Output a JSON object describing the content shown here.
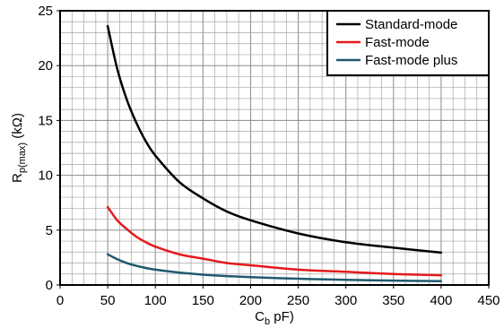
{
  "chart_data": {
    "type": "line",
    "xlabel": "Cb pF)",
    "xlabel_main": "C",
    "xlabel_sub": "b",
    "xlabel_tail": " pF)",
    "ylabel_main": "R",
    "ylabel_sub": "p(max)",
    "ylabel_tail": " (kΩ)",
    "xlim": [
      0,
      450
    ],
    "ylim": [
      0,
      25
    ],
    "x_ticks": [
      0,
      50,
      100,
      150,
      200,
      250,
      300,
      350,
      400,
      450
    ],
    "y_ticks": [
      0,
      5,
      10,
      15,
      20,
      25
    ],
    "x_tick_labels": [
      "0",
      "50",
      "100",
      "150",
      "200",
      "250",
      "300",
      "350",
      "400",
      "450"
    ],
    "y_tick_labels": [
      "0",
      "5",
      "10",
      "15",
      "20",
      "25"
    ],
    "grid": true,
    "legend_position": "top-right",
    "series": [
      {
        "name": "Standard-mode",
        "color": "#000000",
        "x": [
          50,
          60,
          70,
          80,
          90,
          100,
          125,
          150,
          175,
          200,
          250,
          300,
          350,
          400
        ],
        "y": [
          23.6,
          19.7,
          16.9,
          14.8,
          13.1,
          11.8,
          9.4,
          7.9,
          6.7,
          5.9,
          4.7,
          3.9,
          3.4,
          2.95
        ]
      },
      {
        "name": "Fast-mode",
        "color": "#e41a1c",
        "x": [
          50,
          60,
          70,
          80,
          90,
          100,
          125,
          150,
          175,
          200,
          250,
          300,
          350,
          400
        ],
        "y": [
          7.1,
          5.9,
          5.1,
          4.4,
          3.9,
          3.5,
          2.8,
          2.4,
          2.0,
          1.8,
          1.4,
          1.2,
          1.0,
          0.89
        ]
      },
      {
        "name": "Fast-mode plus",
        "color": "#1f5a6e",
        "x": [
          50,
          60,
          70,
          80,
          90,
          100,
          125,
          150,
          175,
          200,
          250,
          300,
          350,
          400
        ],
        "y": [
          2.8,
          2.35,
          2.0,
          1.75,
          1.55,
          1.4,
          1.13,
          0.94,
          0.81,
          0.71,
          0.57,
          0.47,
          0.4,
          0.35
        ]
      }
    ]
  }
}
